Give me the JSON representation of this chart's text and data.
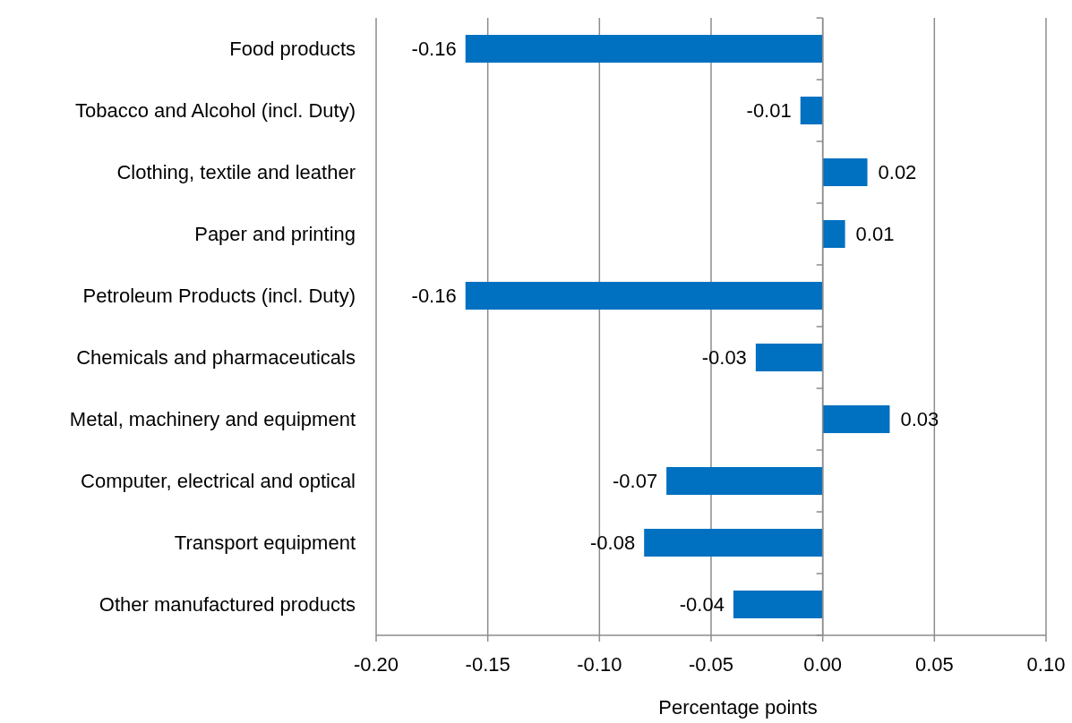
{
  "chart_data": {
    "type": "bar",
    "orientation": "horizontal",
    "xlabel": "Percentage points",
    "categories": [
      "Food products",
      "Tobacco and Alcohol (incl. Duty)",
      "Clothing, textile and leather",
      "Paper and printing",
      "Petroleum Products (incl. Duty)",
      "Chemicals and pharmaceuticals",
      "Metal, machinery and equipment",
      "Computer, electrical and optical",
      "Transport equipment",
      "Other manufactured products"
    ],
    "values": [
      -0.16,
      -0.01,
      0.02,
      0.01,
      -0.16,
      -0.03,
      0.03,
      -0.07,
      -0.08,
      -0.04
    ],
    "color": "#0070c0",
    "xlim": [
      -0.2,
      0.1
    ],
    "xticks": [
      {
        "value": -0.2,
        "label": "-0.20"
      },
      {
        "value": -0.15,
        "label": "-0.15"
      },
      {
        "value": -0.1,
        "label": "-0.10"
      },
      {
        "value": -0.05,
        "label": "-0.05"
      },
      {
        "value": 0,
        "label": "0.00"
      },
      {
        "value": 0.05,
        "label": "0.05"
      },
      {
        "value": 0.1,
        "label": "0.10"
      }
    ],
    "grid": "x",
    "data_labels": true
  }
}
